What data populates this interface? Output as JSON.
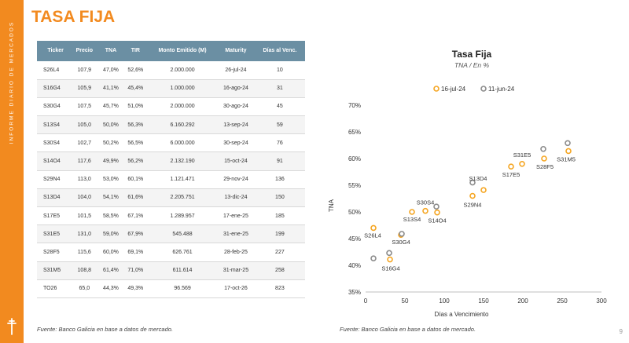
{
  "sidebar": {
    "text": "INFORME DIARIO DE MERCADOS"
  },
  "page": {
    "title": "TASA FIJA",
    "number": "9"
  },
  "table": {
    "headers": [
      "Ticker",
      "Precio",
      "TNA",
      "TIR",
      "Monto Emitido (M)",
      "Maturity",
      "Días al Venc."
    ],
    "rows": [
      [
        "S26L4",
        "107,9",
        "47,0%",
        "52,6%",
        "2.000.000",
        "26-jul-24",
        "10"
      ],
      [
        "S16G4",
        "105,9",
        "41,1%",
        "45,4%",
        "1.000.000",
        "16-ago-24",
        "31"
      ],
      [
        "S30G4",
        "107,5",
        "45,7%",
        "51,0%",
        "2.000.000",
        "30-ago-24",
        "45"
      ],
      [
        "S13S4",
        "105,0",
        "50,0%",
        "56,3%",
        "6.160.292",
        "13-sep-24",
        "59"
      ],
      [
        "S30S4",
        "102,7",
        "50,2%",
        "56,5%",
        "6.000.000",
        "30-sep-24",
        "76"
      ],
      [
        "S14O4",
        "117,6",
        "49,9%",
        "56,2%",
        "2.132.190",
        "15-oct-24",
        "91"
      ],
      [
        "S29N4",
        "113,0",
        "53,0%",
        "60,1%",
        "1.121.471",
        "29-nov-24",
        "136"
      ],
      [
        "S13D4",
        "104,0",
        "54,1%",
        "61,6%",
        "2.205.751",
        "13-dic-24",
        "150"
      ],
      [
        "S17E5",
        "101,5",
        "58,5%",
        "67,1%",
        "1.289.957",
        "17-ene-25",
        "185"
      ],
      [
        "S31E5",
        "131,0",
        "59,0%",
        "67,9%",
        "545.488",
        "31-ene-25",
        "199"
      ],
      [
        "S28F5",
        "115,6",
        "60,0%",
        "69,1%",
        "626.761",
        "28-feb-25",
        "227"
      ],
      [
        "S31M5",
        "108,8",
        "61,4%",
        "71,0%",
        "611.614",
        "31-mar-25",
        "258"
      ],
      [
        "TO26",
        "65,0",
        "44,3%",
        "49,3%",
        "96.569",
        "17-oct-26",
        "823"
      ]
    ]
  },
  "sources": {
    "left": "Fuente: Banco Galicia en base a datos de mercado.",
    "right": "Fuente: Banco Galicia en base a datos de mercado."
  },
  "chart_data": {
    "type": "scatter",
    "title": "Tasa Fija",
    "subtitle": "TNA / En %",
    "xlabel": "Días a Vencimiento",
    "ylabel": "TNA",
    "xlim": [
      0,
      300
    ],
    "ylim": [
      35,
      70
    ],
    "xticks": [
      0,
      50,
      100,
      150,
      200,
      250,
      300
    ],
    "yticks": [
      35,
      40,
      45,
      50,
      55,
      60,
      65,
      70
    ],
    "ytick_labels": [
      "35%",
      "40%",
      "45%",
      "50%",
      "55%",
      "60%",
      "65%",
      "70%"
    ],
    "legend_position": "top",
    "series": [
      {
        "name": "16-jul-24",
        "color": "#f5a623",
        "points": [
          {
            "x": 10,
            "y": 47.0
          },
          {
            "x": 31,
            "y": 41.1
          },
          {
            "x": 45,
            "y": 45.7
          },
          {
            "x": 59,
            "y": 50.0
          },
          {
            "x": 76,
            "y": 50.2
          },
          {
            "x": 91,
            "y": 49.9
          },
          {
            "x": 136,
            "y": 53.0
          },
          {
            "x": 150,
            "y": 54.1
          },
          {
            "x": 185,
            "y": 58.5
          },
          {
            "x": 199,
            "y": 59.0
          },
          {
            "x": 227,
            "y": 60.0
          },
          {
            "x": 258,
            "y": 61.4
          }
        ]
      },
      {
        "name": "11-jun-24",
        "color": "#8c8c8c",
        "points": [
          {
            "x": 10,
            "y": 41.3
          },
          {
            "x": 30,
            "y": 42.3
          },
          {
            "x": 46,
            "y": 45.9
          },
          {
            "x": 90,
            "y": 51.0
          },
          {
            "x": 136,
            "y": 55.5
          },
          {
            "x": 226,
            "y": 61.8
          },
          {
            "x": 257,
            "y": 62.9
          }
        ]
      }
    ],
    "point_labels": [
      {
        "text": "S26L4",
        "x": 10,
        "y": 47.0
      },
      {
        "text": "S16G4",
        "x": 31,
        "y": 41.1
      },
      {
        "text": "S30G4",
        "x": 45,
        "y": 45.7
      },
      {
        "text": "S13S4",
        "x": 59,
        "y": 50.0
      },
      {
        "text": "S30S4",
        "x": 76,
        "y": 50.2
      },
      {
        "text": "S14O4",
        "x": 91,
        "y": 49.9
      },
      {
        "text": "S29N4",
        "x": 136,
        "y": 53.0
      },
      {
        "text": "S13D4",
        "x": 150,
        "y": 54.1
      },
      {
        "text": "S17E5",
        "x": 185,
        "y": 58.5
      },
      {
        "text": "S31E5",
        "x": 199,
        "y": 59.0
      },
      {
        "text": "S28F5",
        "x": 227,
        "y": 60.0
      },
      {
        "text": "S31M5",
        "x": 258,
        "y": 61.4
      }
    ]
  }
}
